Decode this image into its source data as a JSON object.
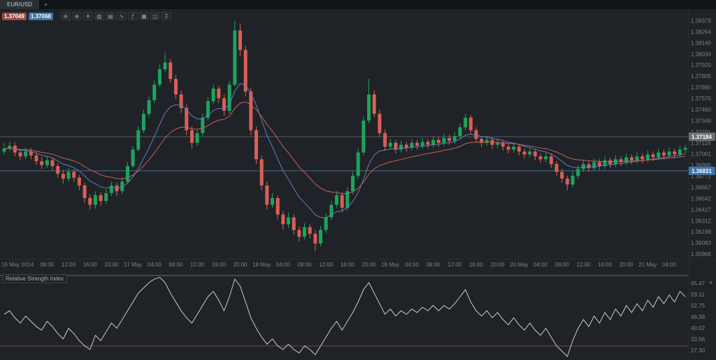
{
  "window": {
    "tab_label": "EUR/USD",
    "new_tab_label": "+"
  },
  "quotes": {
    "bid": "1.37049",
    "ask": "1.37068"
  },
  "toolbar": {
    "icons": [
      {
        "name": "zoom-out",
        "glyph": "⊖"
      },
      {
        "name": "zoom-in",
        "glyph": "⊕"
      },
      {
        "name": "crosshair",
        "glyph": "✛"
      },
      {
        "name": "candlestick-type",
        "glyph": "▥"
      },
      {
        "name": "bar-chart-type",
        "glyph": "▤"
      },
      {
        "name": "line-chart-type",
        "glyph": "∿"
      },
      {
        "name": "indicators",
        "glyph": "ƒ"
      },
      {
        "name": "grid",
        "glyph": "▦"
      },
      {
        "name": "snapshot",
        "glyph": "◫"
      },
      {
        "name": "download",
        "glyph": "↧"
      }
    ]
  },
  "colors": {
    "bg": "#1f2327",
    "up": "#1ca45c",
    "down": "#d95f57",
    "axis_text": "#7b8187",
    "ma_fast": "#5f7fc0",
    "ma_slow": "#c0625f",
    "rsi_line": "#c7ccd1",
    "separator": "#272c31"
  },
  "chart_data": {
    "type": "candlestick",
    "symbol": "EUR/USD",
    "candles": [
      [
        1.3703,
        1.3712,
        1.37,
        1.3706
      ],
      [
        1.3706,
        1.3713,
        1.3703,
        1.3709
      ],
      [
        1.3709,
        1.3712,
        1.3698,
        1.3702
      ],
      [
        1.3702,
        1.3706,
        1.3694,
        1.3698
      ],
      [
        1.3698,
        1.3707,
        1.3695,
        1.3703
      ],
      [
        1.3703,
        1.3707,
        1.3695,
        1.3699
      ],
      [
        1.3699,
        1.3702,
        1.3689,
        1.3693
      ],
      [
        1.3693,
        1.3697,
        1.3685,
        1.3689
      ],
      [
        1.3689,
        1.3698,
        1.3686,
        1.3694
      ],
      [
        1.3694,
        1.3697,
        1.3684,
        1.3688
      ],
      [
        1.3688,
        1.3691,
        1.3676,
        1.368
      ],
      [
        1.368,
        1.3684,
        1.367,
        1.3675
      ],
      [
        1.3675,
        1.3686,
        1.3672,
        1.3682
      ],
      [
        1.3682,
        1.3685,
        1.3672,
        1.3676
      ],
      [
        1.3676,
        1.3679,
        1.3663,
        1.3668
      ],
      [
        1.3668,
        1.3671,
        1.365,
        1.3655
      ],
      [
        1.3655,
        1.3659,
        1.3643,
        1.3648
      ],
      [
        1.3648,
        1.3662,
        1.3644,
        1.3658
      ],
      [
        1.3658,
        1.3661,
        1.3647,
        1.3652
      ],
      [
        1.3652,
        1.3664,
        1.3649,
        1.366
      ],
      [
        1.366,
        1.3672,
        1.3657,
        1.3668
      ],
      [
        1.3668,
        1.3671,
        1.3657,
        1.3662
      ],
      [
        1.3662,
        1.3676,
        1.3659,
        1.3672
      ],
      [
        1.3672,
        1.3692,
        1.367,
        1.3688
      ],
      [
        1.3688,
        1.3709,
        1.3686,
        1.3705
      ],
      [
        1.3705,
        1.3729,
        1.3703,
        1.3725
      ],
      [
        1.3725,
        1.3746,
        1.3722,
        1.3742
      ],
      [
        1.3742,
        1.376,
        1.3739,
        1.3756
      ],
      [
        1.3756,
        1.3776,
        1.3753,
        1.3772
      ],
      [
        1.3772,
        1.3793,
        1.377,
        1.3788
      ],
      [
        1.3788,
        1.3805,
        1.3785,
        1.3795
      ],
      [
        1.3795,
        1.3799,
        1.3774,
        1.3778
      ],
      [
        1.3778,
        1.3782,
        1.3757,
        1.3762
      ],
      [
        1.3762,
        1.3766,
        1.3743,
        1.3748
      ],
      [
        1.3748,
        1.3752,
        1.372,
        1.3725
      ],
      [
        1.3725,
        1.3729,
        1.3706,
        1.3712
      ],
      [
        1.3712,
        1.3726,
        1.3709,
        1.3722
      ],
      [
        1.3722,
        1.3742,
        1.3719,
        1.3738
      ],
      [
        1.3738,
        1.3759,
        1.3735,
        1.3755
      ],
      [
        1.3755,
        1.3772,
        1.3752,
        1.3768
      ],
      [
        1.3768,
        1.3771,
        1.3753,
        1.3758
      ],
      [
        1.3758,
        1.3762,
        1.374,
        1.3745
      ],
      [
        1.3745,
        1.3776,
        1.3742,
        1.3772
      ],
      [
        1.3772,
        1.3838,
        1.377,
        1.3828
      ],
      [
        1.3828,
        1.3835,
        1.3802,
        1.3808
      ],
      [
        1.3808,
        1.3812,
        1.376,
        1.3765
      ],
      [
        1.3765,
        1.3769,
        1.372,
        1.3725
      ],
      [
        1.3725,
        1.3729,
        1.369,
        1.3695
      ],
      [
        1.3695,
        1.3699,
        1.3663,
        1.3668
      ],
      [
        1.3668,
        1.3672,
        1.3643,
        1.3648
      ],
      [
        1.3648,
        1.366,
        1.3645,
        1.3655
      ],
      [
        1.3655,
        1.3658,
        1.3633,
        1.3638
      ],
      [
        1.3638,
        1.3642,
        1.3622,
        1.3628
      ],
      [
        1.3628,
        1.364,
        1.3624,
        1.3635
      ],
      [
        1.3635,
        1.3638,
        1.3617,
        1.3622
      ],
      [
        1.3622,
        1.3626,
        1.361,
        1.3615
      ],
      [
        1.3615,
        1.3629,
        1.3612,
        1.3625
      ],
      [
        1.3625,
        1.3628,
        1.3613,
        1.3618
      ],
      [
        1.3618,
        1.3622,
        1.36,
        1.3608
      ],
      [
        1.3608,
        1.3626,
        1.3605,
        1.3622
      ],
      [
        1.3622,
        1.3639,
        1.3619,
        1.3635
      ],
      [
        1.3635,
        1.3652,
        1.3632,
        1.3648
      ],
      [
        1.3648,
        1.3662,
        1.3645,
        1.3658
      ],
      [
        1.3658,
        1.3661,
        1.364,
        1.3645
      ],
      [
        1.3645,
        1.3666,
        1.3642,
        1.3662
      ],
      [
        1.3662,
        1.3682,
        1.3659,
        1.3678
      ],
      [
        1.3678,
        1.3706,
        1.3675,
        1.3702
      ],
      [
        1.3702,
        1.3739,
        1.3699,
        1.3735
      ],
      [
        1.3735,
        1.3778,
        1.3732,
        1.3762
      ],
      [
        1.3762,
        1.3766,
        1.3738,
        1.3742
      ],
      [
        1.3742,
        1.3746,
        1.3718,
        1.3722
      ],
      [
        1.3722,
        1.3726,
        1.3704,
        1.3708
      ],
      [
        1.3708,
        1.3716,
        1.3705,
        1.3712
      ],
      [
        1.3712,
        1.3715,
        1.3701,
        1.3705
      ],
      [
        1.3705,
        1.3714,
        1.3702,
        1.371
      ],
      [
        1.371,
        1.3713,
        1.3703,
        1.3707
      ],
      [
        1.3707,
        1.3716,
        1.3704,
        1.3712
      ],
      [
        1.3712,
        1.3715,
        1.3705,
        1.3709
      ],
      [
        1.3709,
        1.3717,
        1.3706,
        1.3713
      ],
      [
        1.3713,
        1.3716,
        1.3706,
        1.371
      ],
      [
        1.371,
        1.3719,
        1.3707,
        1.3715
      ],
      [
        1.3715,
        1.3718,
        1.3708,
        1.3712
      ],
      [
        1.3712,
        1.3721,
        1.3709,
        1.3717
      ],
      [
        1.3717,
        1.372,
        1.371,
        1.3714
      ],
      [
        1.3714,
        1.3723,
        1.3711,
        1.3719
      ],
      [
        1.3719,
        1.3732,
        1.3716,
        1.3728
      ],
      [
        1.3728,
        1.3742,
        1.3725,
        1.3738
      ],
      [
        1.3738,
        1.3741,
        1.3721,
        1.3725
      ],
      [
        1.3725,
        1.3728,
        1.3712,
        1.3716
      ],
      [
        1.3716,
        1.3719,
        1.3708,
        1.3712
      ],
      [
        1.3712,
        1.3719,
        1.3709,
        1.3715
      ],
      [
        1.3715,
        1.3718,
        1.3706,
        1.371
      ],
      [
        1.371,
        1.3716,
        1.3707,
        1.3712
      ],
      [
        1.3712,
        1.3715,
        1.3704,
        1.3708
      ],
      [
        1.3708,
        1.3711,
        1.3701,
        1.3705
      ],
      [
        1.3705,
        1.3712,
        1.3702,
        1.3708
      ],
      [
        1.3708,
        1.3711,
        1.3699,
        1.3703
      ],
      [
        1.3703,
        1.3706,
        1.3696,
        1.37
      ],
      [
        1.37,
        1.3707,
        1.3697,
        1.3703
      ],
      [
        1.3703,
        1.3706,
        1.3694,
        1.3698
      ],
      [
        1.3698,
        1.3701,
        1.3691,
        1.3695
      ],
      [
        1.3695,
        1.3702,
        1.3692,
        1.3698
      ],
      [
        1.3698,
        1.3701,
        1.3686,
        1.369
      ],
      [
        1.369,
        1.3693,
        1.3678,
        1.3682
      ],
      [
        1.3682,
        1.3685,
        1.3671,
        1.3675
      ],
      [
        1.3675,
        1.3678,
        1.3663,
        1.3669
      ],
      [
        1.3669,
        1.3682,
        1.3666,
        1.3678
      ],
      [
        1.3678,
        1.3689,
        1.3675,
        1.3685
      ],
      [
        1.3685,
        1.3694,
        1.3682,
        1.369
      ],
      [
        1.369,
        1.3693,
        1.3682,
        1.3686
      ],
      [
        1.3686,
        1.3696,
        1.3683,
        1.3692
      ],
      [
        1.3692,
        1.3695,
        1.3684,
        1.3688
      ],
      [
        1.3688,
        1.3698,
        1.3685,
        1.3694
      ],
      [
        1.3694,
        1.3697,
        1.3686,
        1.369
      ],
      [
        1.369,
        1.3699,
        1.3687,
        1.3695
      ],
      [
        1.3695,
        1.3698,
        1.3688,
        1.3692
      ],
      [
        1.3692,
        1.3701,
        1.3689,
        1.3697
      ],
      [
        1.3697,
        1.37,
        1.369,
        1.3694
      ],
      [
        1.3694,
        1.3702,
        1.3691,
        1.3698
      ],
      [
        1.3698,
        1.3701,
        1.3691,
        1.3695
      ],
      [
        1.3695,
        1.3704,
        1.3692,
        1.37
      ],
      [
        1.37,
        1.3703,
        1.3693,
        1.3697
      ],
      [
        1.3697,
        1.3706,
        1.3694,
        1.3702
      ],
      [
        1.3702,
        1.3705,
        1.3695,
        1.3699
      ],
      [
        1.3699,
        1.3707,
        1.3696,
        1.3703
      ],
      [
        1.3703,
        1.3706,
        1.3696,
        1.37
      ],
      [
        1.37,
        1.3709,
        1.3697,
        1.3705
      ],
      [
        1.3705,
        1.371,
        1.3701,
        1.37068
      ]
    ],
    "x_labels": [
      {
        "i": 0,
        "t": "16 May 2014"
      },
      {
        "i": 8,
        "t": "08:00"
      },
      {
        "i": 12,
        "t": "12:00"
      },
      {
        "i": 16,
        "t": "16:00"
      },
      {
        "i": 20,
        "t": "20:00"
      },
      {
        "i": 24,
        "t": "17 May"
      },
      {
        "i": 28,
        "t": "04:00"
      },
      {
        "i": 32,
        "t": "08:00"
      },
      {
        "i": 36,
        "t": "12:00"
      },
      {
        "i": 40,
        "t": "16:00"
      },
      {
        "i": 44,
        "t": "20:00"
      },
      {
        "i": 48,
        "t": "18 May"
      },
      {
        "i": 52,
        "t": "04:00"
      },
      {
        "i": 56,
        "t": "08:00"
      },
      {
        "i": 60,
        "t": "12:00"
      },
      {
        "i": 64,
        "t": "16:00"
      },
      {
        "i": 68,
        "t": "20:00"
      },
      {
        "i": 72,
        "t": "19 May"
      },
      {
        "i": 76,
        "t": "04:00"
      },
      {
        "i": 80,
        "t": "08:00"
      },
      {
        "i": 84,
        "t": "12:00"
      },
      {
        "i": 88,
        "t": "16:00"
      },
      {
        "i": 92,
        "t": "20:00"
      },
      {
        "i": 96,
        "t": "20 May"
      },
      {
        "i": 100,
        "t": "04:00"
      },
      {
        "i": 104,
        "t": "08:00"
      },
      {
        "i": 108,
        "t": "12:00"
      },
      {
        "i": 112,
        "t": "16:00"
      },
      {
        "i": 116,
        "t": "20:00"
      },
      {
        "i": 120,
        "t": "21 May"
      },
      {
        "i": 124,
        "t": "04:00"
      }
    ],
    "y_axis": {
      "max_value": 1.38379,
      "min_value": 1.35968,
      "ticks": [
        "1.38379",
        "1.38264",
        "1.38149",
        "1.38034",
        "1.37920",
        "1.37805",
        "1.37690",
        "1.37575",
        "1.37460",
        "1.37346",
        "1.37231",
        "1.37116",
        "1.37001",
        "1.36886",
        "1.36772",
        "1.36657",
        "1.36542",
        "1.36427",
        "1.36312",
        "1.36198",
        "1.36083",
        "1.35968"
      ]
    },
    "price_levels": [
      {
        "value": 1.37184,
        "label": "1.37184",
        "line_color": "#565c63",
        "badge_color": "#6b7177"
      },
      {
        "value": 1.36831,
        "label": "1.36831",
        "line_color": "#49708f",
        "badge_color": "#3f74a8"
      }
    ],
    "overlays": [
      {
        "name": "ma-fast-line",
        "color": "#5f7fc0"
      },
      {
        "name": "ma-slow-line",
        "color": "#c0625f"
      }
    ],
    "indicator": {
      "name": "Relative Strength Index",
      "type": "rsi",
      "close_label": "×",
      "color": "#c7ccd1",
      "scale": {
        "min": 22,
        "max": 70
      },
      "levels": [
        {
          "value": 70,
          "color": "#2f8f57"
        },
        {
          "value": 30,
          "color": "#83403a"
        }
      ],
      "ticks": [
        "65.47",
        "59.11",
        "52.75",
        "46.38",
        "40.02",
        "33.66",
        "27.30"
      ],
      "values": [
        48,
        50,
        46,
        43,
        47,
        44,
        41,
        39,
        44,
        41,
        37,
        34,
        40,
        37,
        33,
        30,
        28,
        36,
        33,
        38,
        43,
        40,
        45,
        50,
        55,
        60,
        63,
        66,
        68,
        69,
        66,
        60,
        55,
        50,
        46,
        43,
        48,
        53,
        58,
        61,
        56,
        50,
        58,
        68,
        64,
        55,
        46,
        40,
        35,
        31,
        34,
        30,
        28,
        31,
        28,
        26,
        30,
        28,
        25,
        30,
        35,
        40,
        44,
        39,
        44,
        49,
        55,
        62,
        66,
        60,
        54,
        48,
        51,
        47,
        50,
        48,
        51,
        49,
        52,
        50,
        53,
        50,
        53,
        51,
        54,
        58,
        62,
        55,
        50,
        47,
        50,
        46,
        49,
        45,
        42,
        46,
        42,
        39,
        43,
        39,
        36,
        40,
        35,
        30,
        27,
        24,
        33,
        40,
        45,
        41,
        47,
        43,
        49,
        45,
        51,
        47,
        53,
        49,
        54,
        50,
        56,
        52,
        58,
        54,
        59,
        55,
        61,
        58
      ]
    }
  }
}
